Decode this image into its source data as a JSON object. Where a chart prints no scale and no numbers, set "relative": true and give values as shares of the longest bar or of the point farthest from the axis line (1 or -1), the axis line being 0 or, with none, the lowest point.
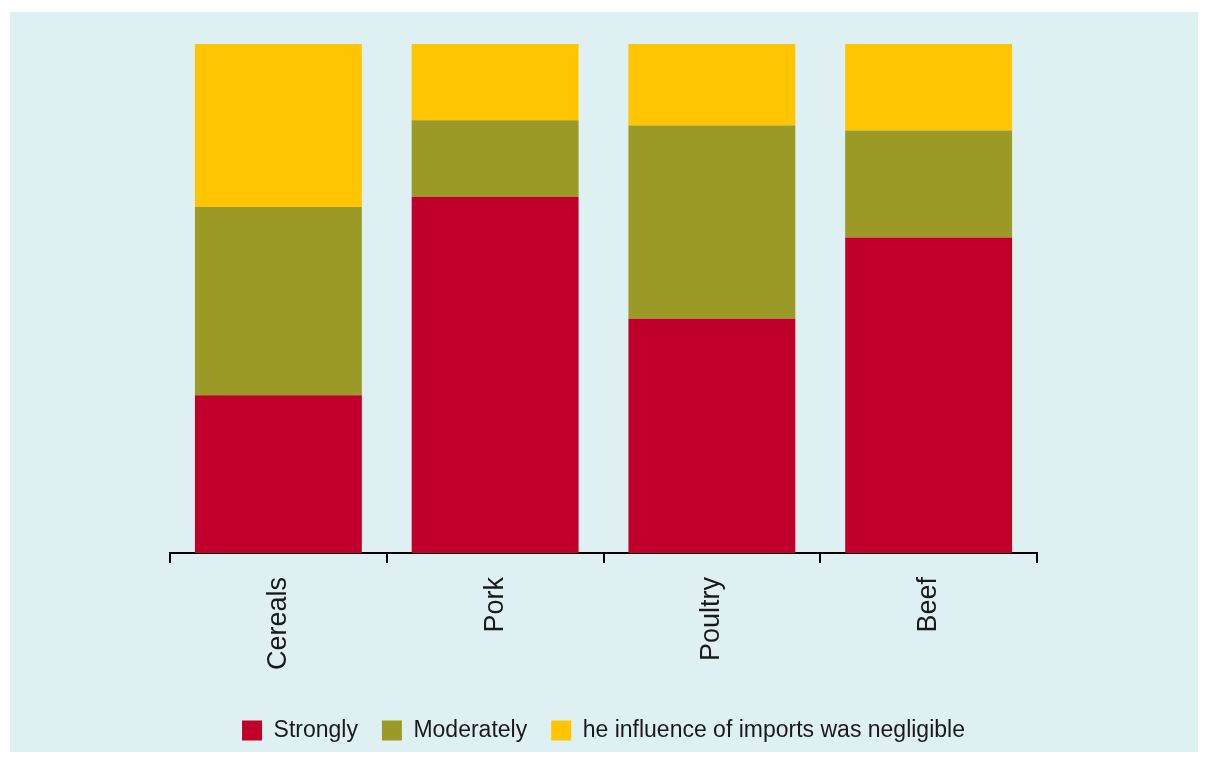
{
  "chart_data": {
    "type": "bar",
    "stacked": true,
    "relative": true,
    "legend": "bottom",
    "categories": [
      "Cereals",
      "Pork",
      "Poultry",
      "Beef"
    ],
    "series": [
      {
        "name": "Strongly",
        "color": "#c0002b",
        "values": [
          0.31,
          0.7,
          0.46,
          0.62
        ]
      },
      {
        "name": "Moderately",
        "color": "#9c9a26",
        "values": [
          0.37,
          0.15,
          0.38,
          0.21
        ]
      },
      {
        "name": "he influence of imports was negligible",
        "color": "#fec500",
        "values": [
          0.32,
          0.15,
          0.16,
          0.17
        ]
      }
    ]
  }
}
